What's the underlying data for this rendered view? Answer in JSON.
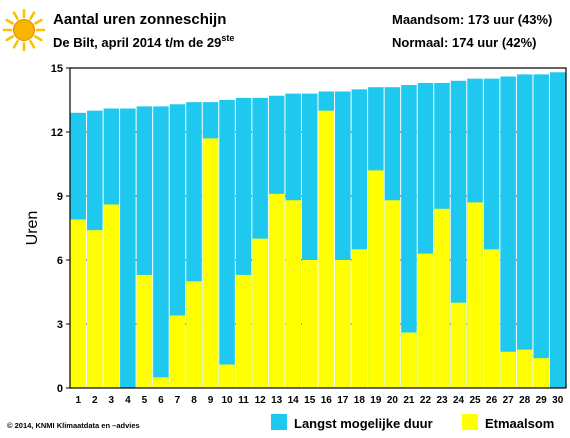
{
  "header": {
    "title": "Aantal uren zonneschijn",
    "subtitle_main": "De Bilt, april 2014 t/m de 29",
    "subtitle_sup": "ste",
    "month_total": "Maandsom: 173 uur (43%)",
    "normal": "Normaal: 174 uur (42%)",
    "sun_icon": "sun-icon"
  },
  "footer": {
    "copyright": "© 2014, KNMI Klimaatdata en –advies"
  },
  "colors": {
    "max_duration": "#1ec8ef",
    "daily_sum": "#ffff00",
    "plot_background": "#ffffff",
    "sun_core": "#f7b500",
    "sun_rays": "#f7c400"
  },
  "chart_data": {
    "type": "bar",
    "title": "Aantal uren zonneschijn",
    "xlabel": "",
    "ylabel": "Uren",
    "ylim": [
      0,
      15
    ],
    "yticks": [
      0,
      3,
      6,
      9,
      12,
      15
    ],
    "grid": true,
    "legend_position": "bottom",
    "categories": [
      "1",
      "2",
      "3",
      "4",
      "5",
      "6",
      "7",
      "8",
      "9",
      "10",
      "11",
      "12",
      "13",
      "14",
      "15",
      "16",
      "17",
      "18",
      "19",
      "20",
      "21",
      "22",
      "23",
      "24",
      "25",
      "26",
      "27",
      "28",
      "29",
      "30"
    ],
    "series": [
      {
        "name": "Langst mogelijke duur",
        "values": [
          12.9,
          13.0,
          13.1,
          13.1,
          13.2,
          13.2,
          13.3,
          13.4,
          13.4,
          13.5,
          13.6,
          13.6,
          13.7,
          13.8,
          13.8,
          13.9,
          13.9,
          14.0,
          14.1,
          14.1,
          14.2,
          14.3,
          14.3,
          14.4,
          14.5,
          14.5,
          14.6,
          14.7,
          14.7,
          14.8
        ]
      },
      {
        "name": "Etmaalsom",
        "values": [
          7.9,
          7.4,
          8.6,
          0.0,
          5.3,
          0.5,
          3.4,
          5.0,
          11.7,
          1.1,
          5.3,
          7.0,
          9.1,
          8.8,
          6.0,
          13.0,
          6.0,
          6.5,
          10.2,
          8.8,
          2.6,
          6.3,
          8.4,
          4.0,
          8.7,
          6.5,
          1.7,
          1.8,
          1.4,
          0.0
        ]
      }
    ]
  }
}
